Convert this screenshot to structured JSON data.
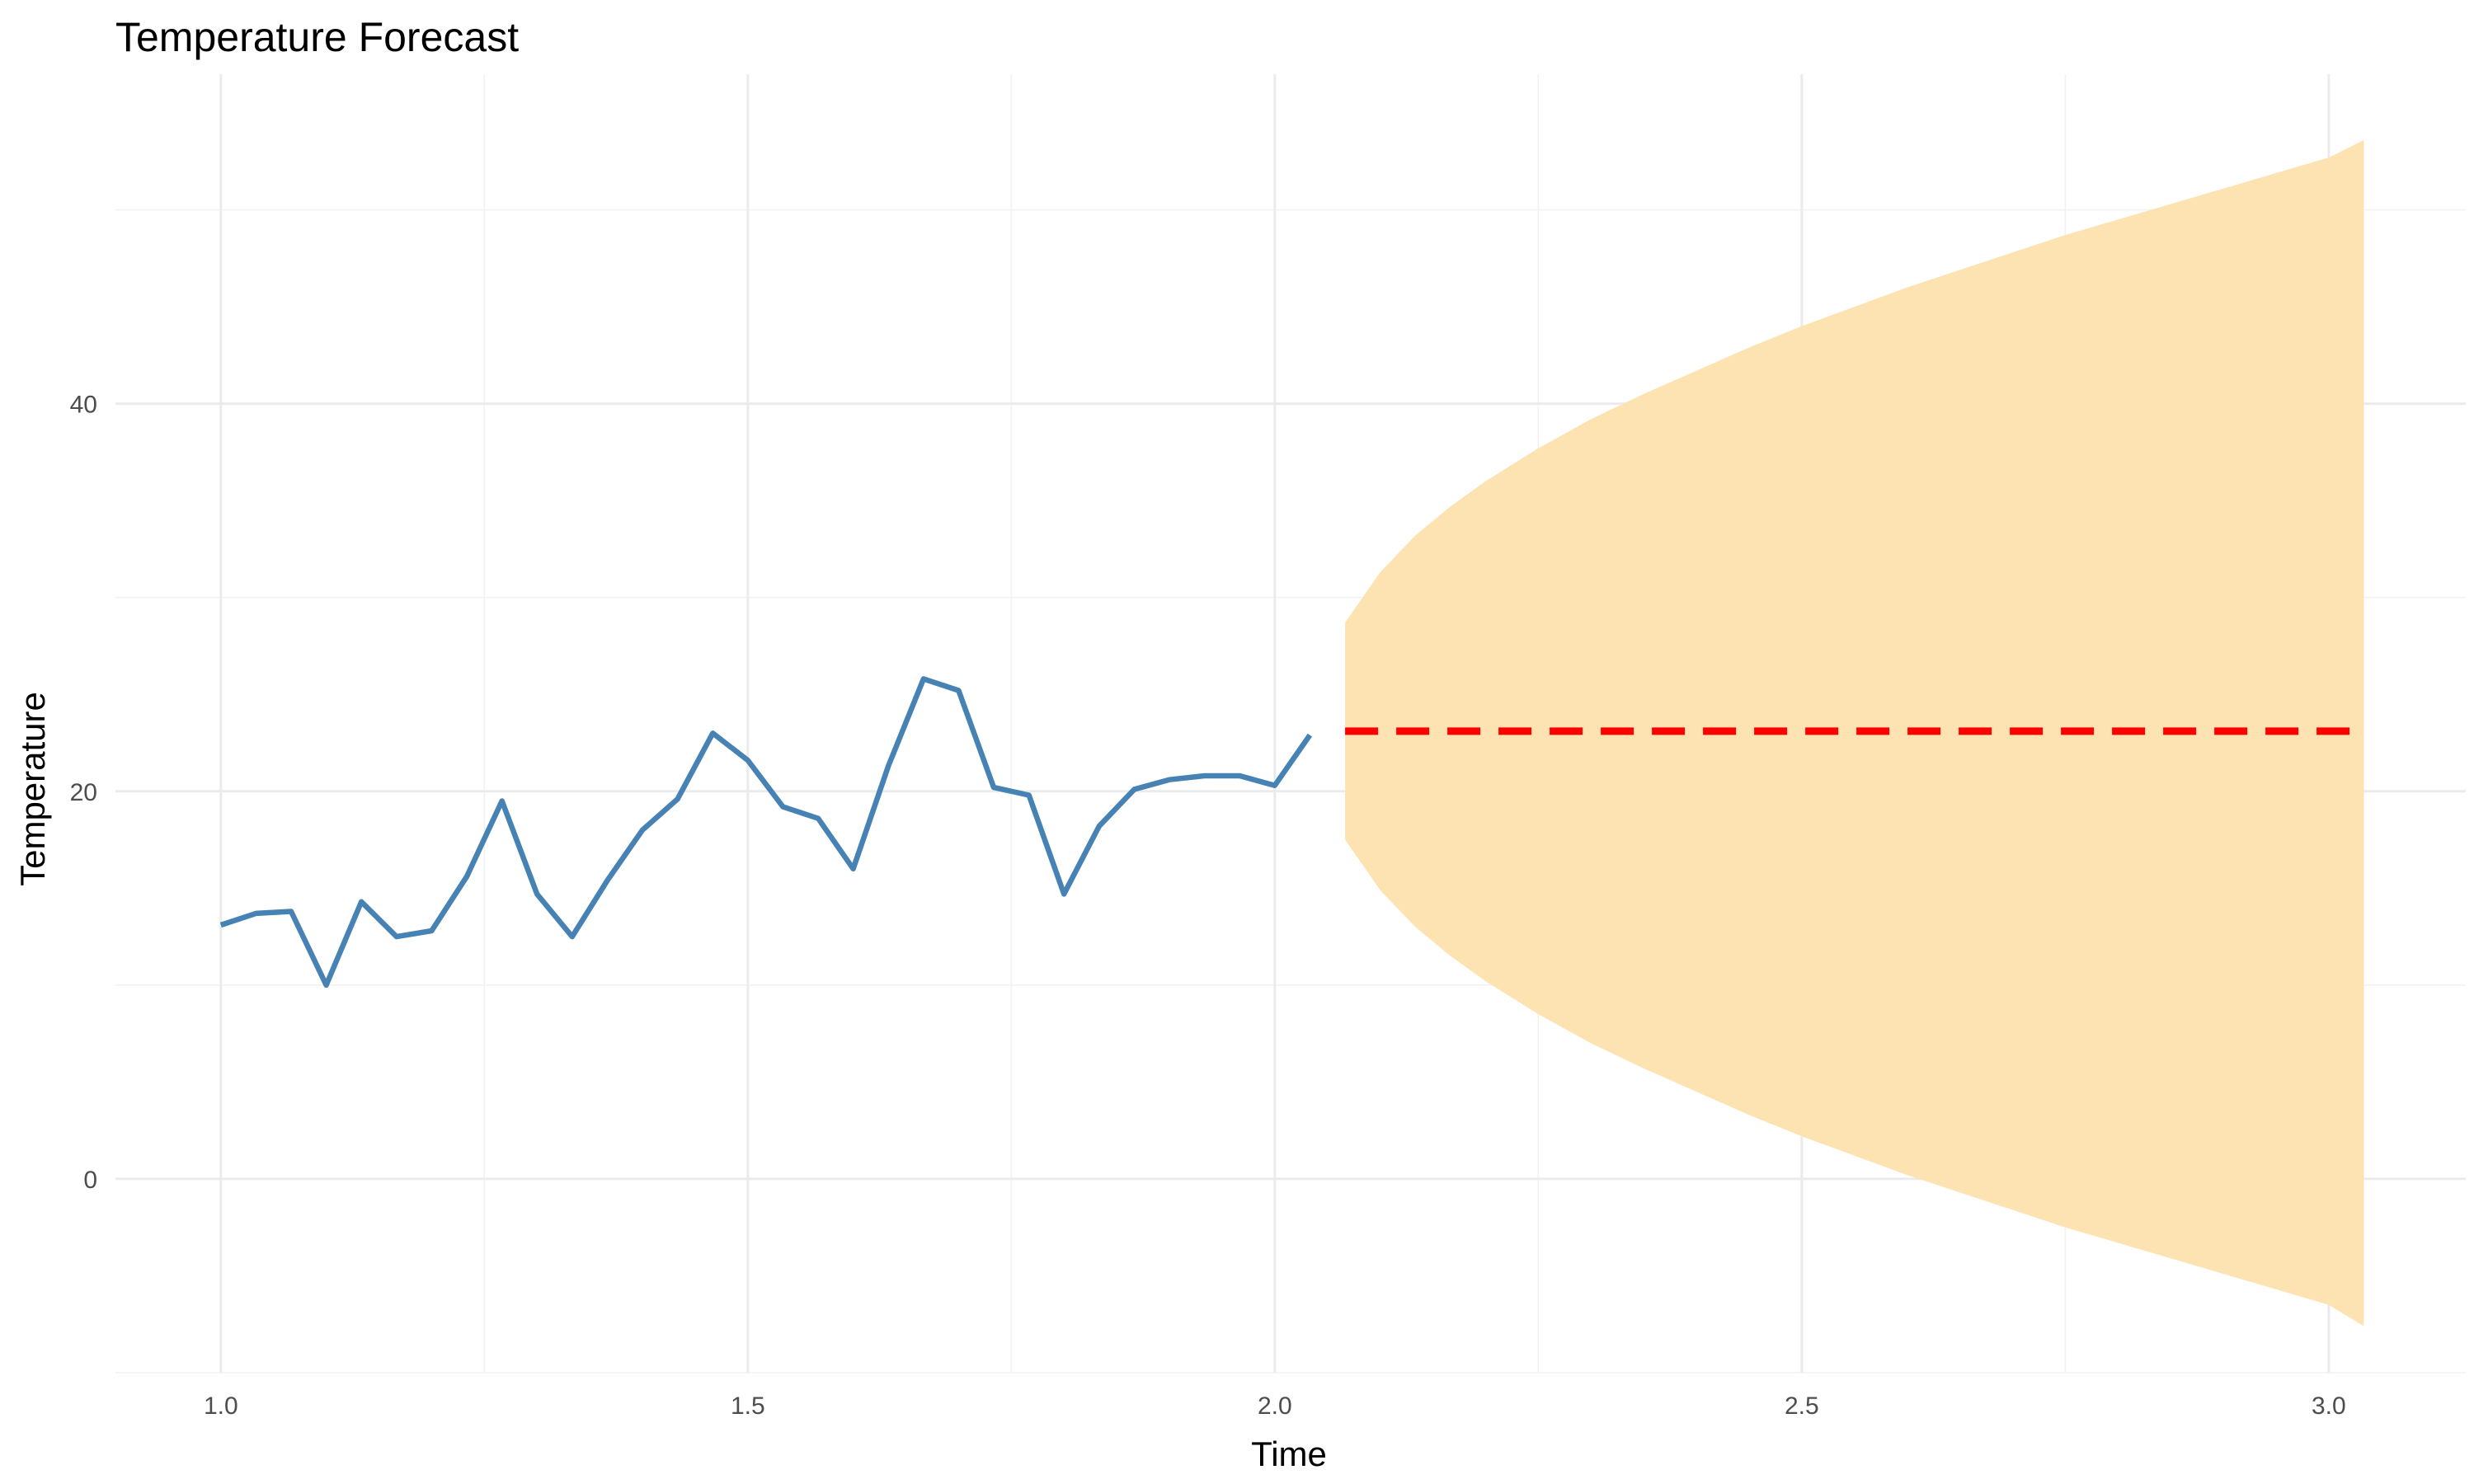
{
  "chart_data": {
    "type": "line",
    "title": "Temperature Forecast",
    "xlabel": "Time",
    "ylabel": "Temperature",
    "xlim": [
      0.9,
      3.13
    ],
    "ylim": [
      -10,
      57
    ],
    "x_ticks": [
      1.0,
      1.5,
      2.0,
      2.5,
      3.0
    ],
    "x_tick_labels": [
      "1.0",
      "1.5",
      "2.0",
      "2.5",
      "3.0"
    ],
    "y_ticks": [
      0,
      20,
      40
    ],
    "y_tick_labels": [
      "0",
      "20",
      "40"
    ],
    "grid": true,
    "series": [
      {
        "role": "observed",
        "color": "#4682b4",
        "x": [
          1.0,
          1.0333,
          1.0667,
          1.1,
          1.1333,
          1.1667,
          1.2,
          1.2333,
          1.2667,
          1.3,
          1.3333,
          1.3667,
          1.4,
          1.4333,
          1.4667,
          1.5,
          1.5333,
          1.5667,
          1.6,
          1.6333,
          1.6667,
          1.7,
          1.7333,
          1.7667,
          1.8,
          1.8333,
          1.8667,
          1.9,
          1.9333,
          1.9667,
          2.0,
          2.0333
        ],
        "y": [
          13.1,
          13.7,
          13.8,
          10.0,
          14.3,
          12.5,
          12.8,
          15.6,
          19.5,
          14.7,
          12.5,
          15.4,
          18.0,
          19.6,
          23.0,
          21.6,
          19.2,
          18.6,
          16.0,
          21.3,
          25.8,
          25.2,
          20.2,
          19.8,
          14.7,
          18.2,
          20.1,
          20.6,
          20.8,
          20.8,
          20.3,
          22.9
        ]
      },
      {
        "role": "forecast",
        "color": "#ff0000",
        "line_style": "dashed",
        "x": [
          2.0667,
          3.0333
        ],
        "y": [
          23.1,
          23.1
        ]
      }
    ],
    "interval": {
      "color": "#fde3b2",
      "x": [
        2.0667,
        2.1,
        2.1333,
        2.1667,
        2.2,
        2.25,
        2.3,
        2.35,
        2.4,
        2.45,
        2.5,
        2.55,
        2.6,
        2.65,
        2.7,
        2.75,
        2.8,
        2.85,
        2.9,
        2.95,
        3.0,
        3.0333
      ],
      "lower": [
        17.5,
        14.9,
        13.0,
        11.5,
        10.2,
        8.5,
        7.0,
        5.7,
        4.5,
        3.3,
        2.2,
        1.2,
        0.2,
        -0.7,
        -1.6,
        -2.5,
        -3.3,
        -4.1,
        -4.9,
        -5.7,
        -6.5,
        -7.6
      ],
      "upper": [
        28.7,
        31.3,
        33.2,
        34.7,
        36.0,
        37.7,
        39.2,
        40.5,
        41.7,
        42.9,
        44.0,
        45.0,
        46.0,
        46.9,
        47.8,
        48.7,
        49.5,
        50.3,
        51.1,
        51.9,
        52.7,
        53.6
      ]
    }
  }
}
